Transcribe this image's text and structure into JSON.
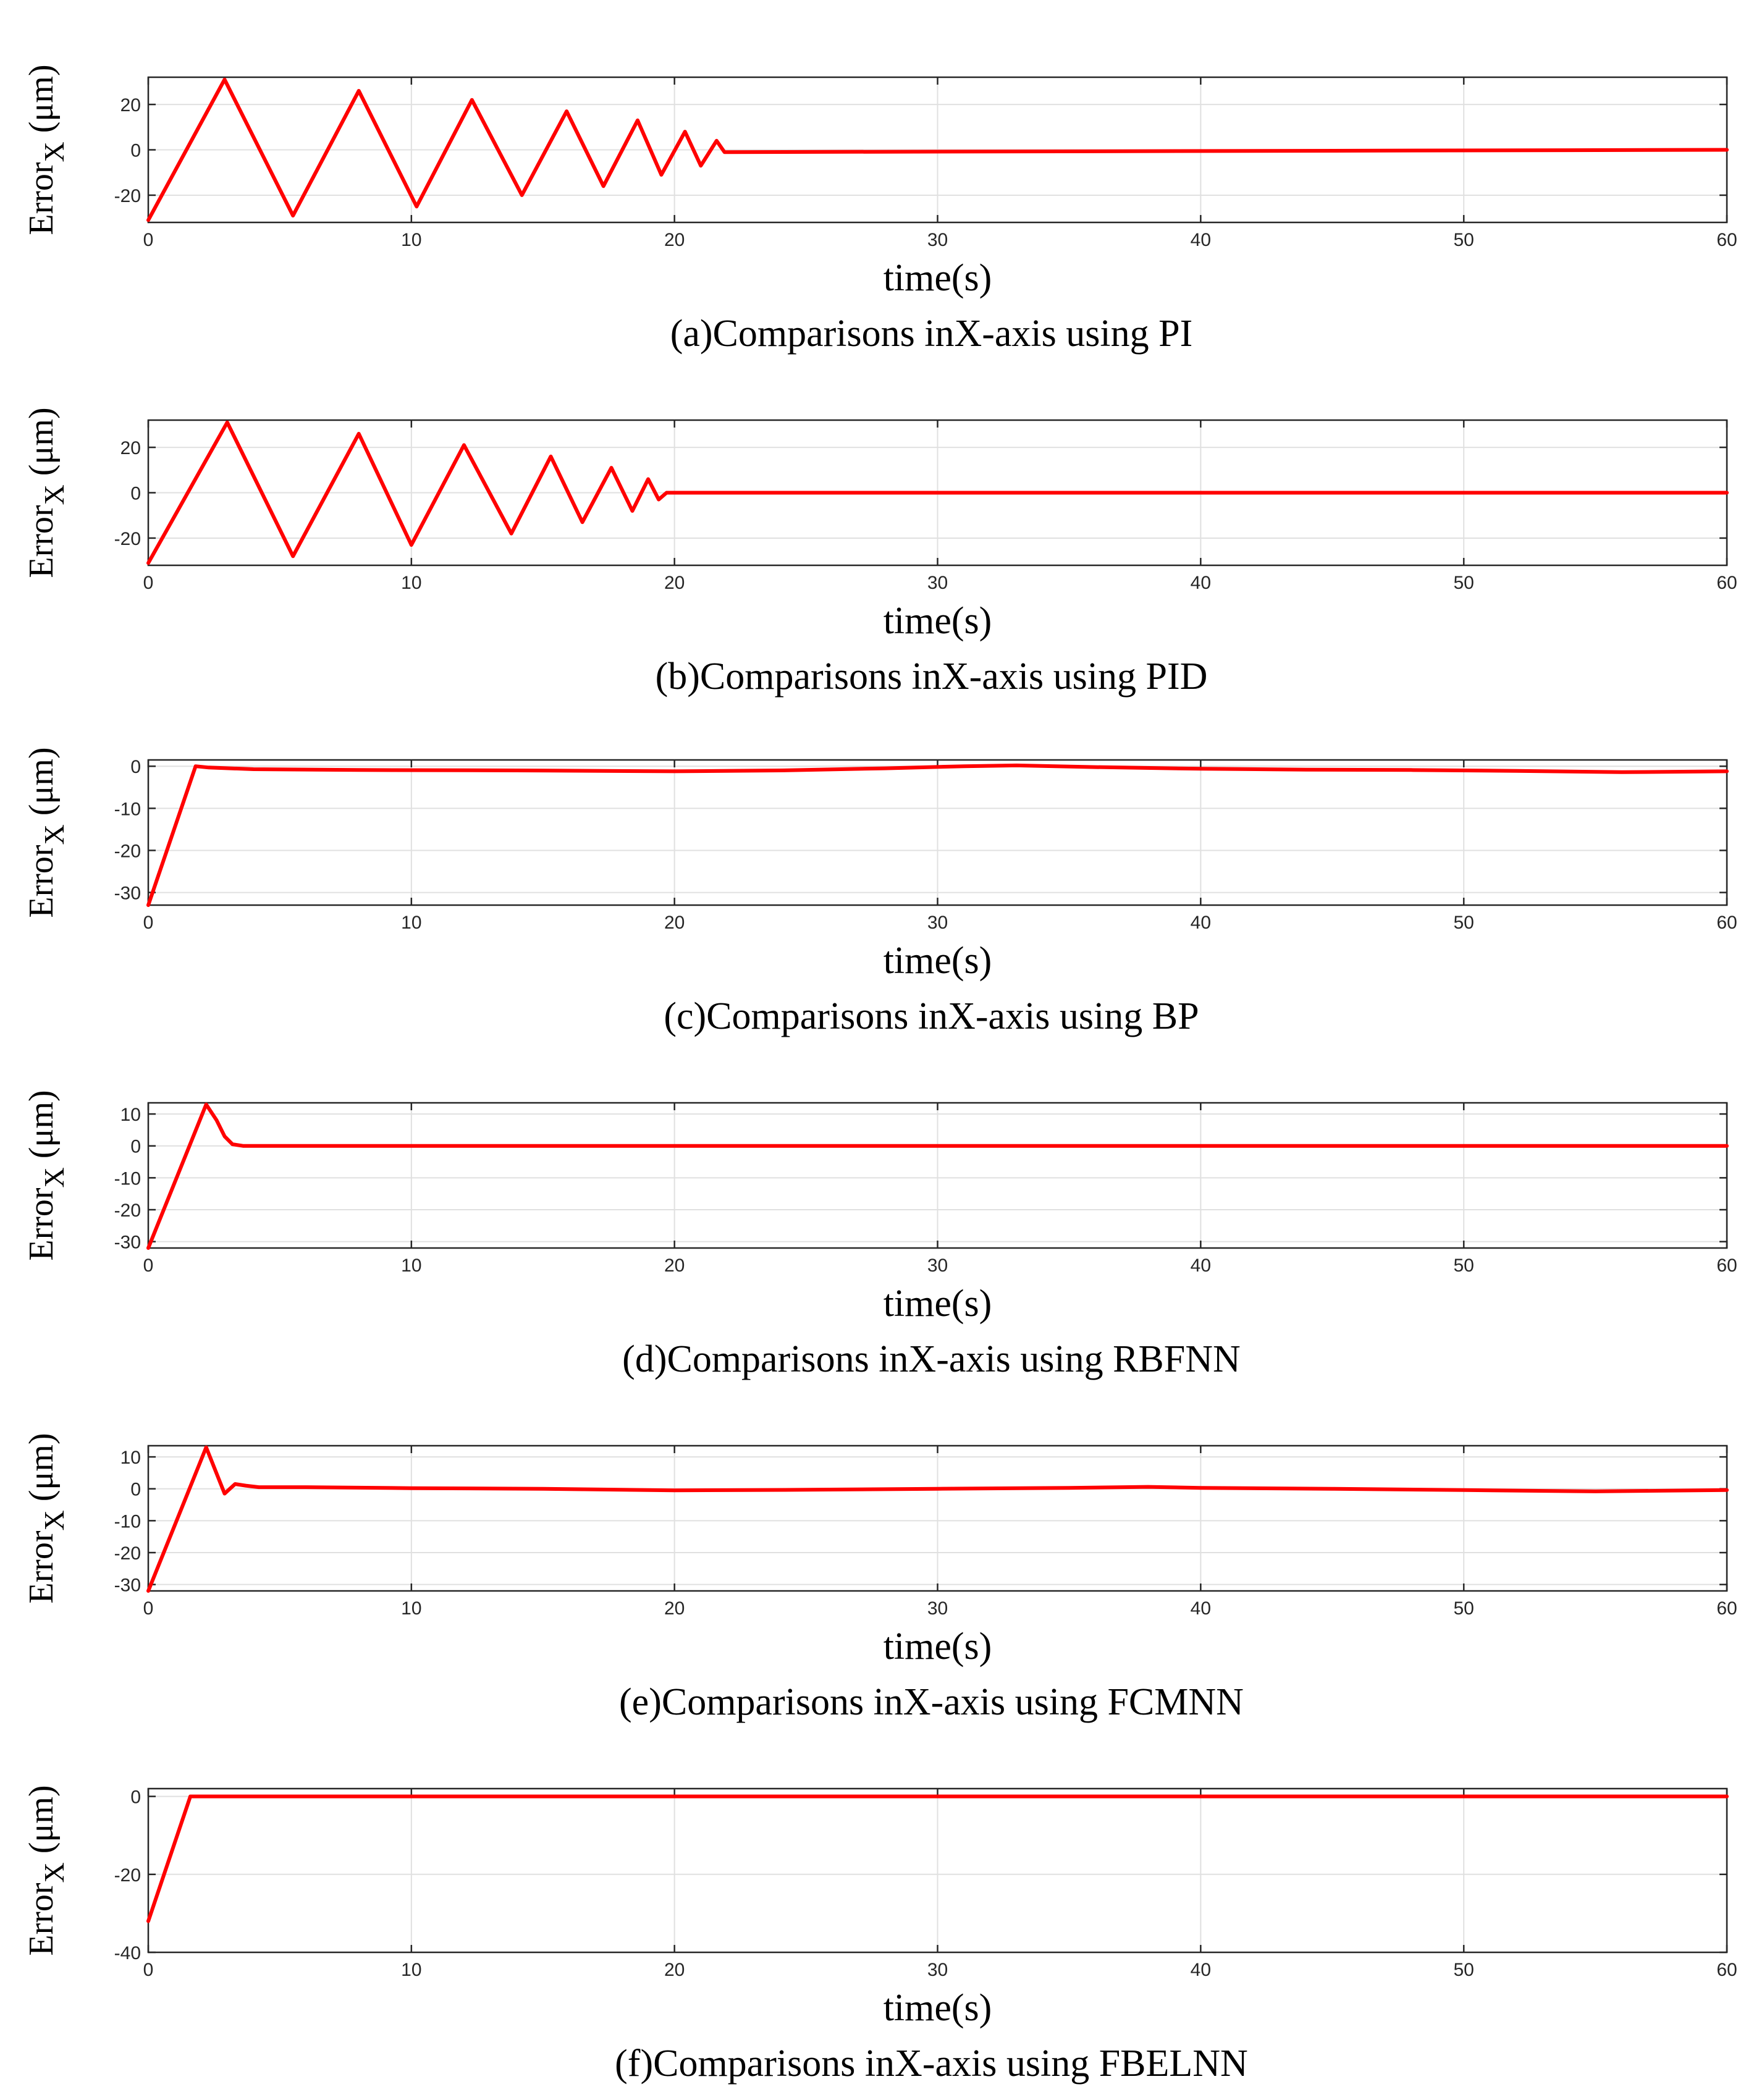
{
  "figure": {
    "colors": {
      "series": "#ff0000",
      "grid": "#e0e0e0",
      "axes": "#262626"
    }
  },
  "chart_data": [
    {
      "type": "line",
      "caption": "(a)Comparisons inX-axis using PI",
      "xlabel": "time(s)",
      "ylabel": "Error",
      "ylabel_sub": "X",
      "ylabel_unit": "(μm)",
      "xlim": [
        0,
        60
      ],
      "ylim": [
        -32,
        32
      ],
      "xticks": [
        0,
        10,
        20,
        30,
        40,
        50,
        60
      ],
      "yticks": [
        -20,
        0,
        20
      ],
      "grid": true,
      "series": [
        {
          "name": "Error_X",
          "color": "#ff0000",
          "x": [
            0,
            2.9,
            5.5,
            8.0,
            10.2,
            12.3,
            14.2,
            15.9,
            17.3,
            18.6,
            19.5,
            20.4,
            21.0,
            21.6,
            21.9,
            60
          ],
          "y": [
            -31,
            31,
            -29,
            26,
            -25,
            22,
            -20,
            17,
            -16,
            13,
            -11,
            8,
            -7,
            4,
            -1,
            0
          ]
        }
      ]
    },
    {
      "type": "line",
      "caption": "(b)Comparisons inX-axis using PID",
      "xlabel": "time(s)",
      "ylabel": "Error",
      "ylabel_sub": "X",
      "ylabel_unit": "(μm)",
      "xlim": [
        0,
        60
      ],
      "ylim": [
        -32,
        32
      ],
      "xticks": [
        0,
        10,
        20,
        30,
        40,
        50,
        60
      ],
      "yticks": [
        -20,
        0,
        20
      ],
      "grid": true,
      "series": [
        {
          "name": "Error_X",
          "color": "#ff0000",
          "x": [
            0,
            3.0,
            5.5,
            8.0,
            10.0,
            12.0,
            13.8,
            15.3,
            16.5,
            17.6,
            18.4,
            19.0,
            19.4,
            19.7,
            60
          ],
          "y": [
            -31,
            31,
            -28,
            26,
            -23,
            21,
            -18,
            16,
            -13,
            11,
            -8,
            6,
            -3,
            0,
            0
          ]
        }
      ]
    },
    {
      "type": "line",
      "caption": "(c)Comparisons inX-axis using BP",
      "xlabel": "time(s)",
      "ylabel": "Error",
      "ylabel_sub": "X",
      "ylabel_unit": "(μm)",
      "xlim": [
        0,
        60
      ],
      "ylim": [
        -33,
        1.5
      ],
      "xticks": [
        0,
        10,
        20,
        30,
        40,
        50,
        60
      ],
      "yticks": [
        -30,
        -20,
        -10,
        0
      ],
      "grid": true,
      "series": [
        {
          "name": "Error_X",
          "color": "#ff0000",
          "x": [
            0,
            1.8,
            2.3,
            4,
            8,
            14,
            20,
            24,
            28,
            31,
            33,
            36,
            40,
            44,
            48,
            52,
            56,
            60
          ],
          "y": [
            -33,
            0,
            -0.3,
            -0.7,
            -0.9,
            -1.0,
            -1.2,
            -1.0,
            -0.5,
            0.0,
            0.2,
            -0.2,
            -0.6,
            -0.8,
            -0.9,
            -1.1,
            -1.4,
            -1.2
          ]
        }
      ]
    },
    {
      "type": "line",
      "caption": "(d)Comparisons inX-axis using RBFNN",
      "xlabel": "time(s)",
      "ylabel": "Error",
      "ylabel_sub": "X",
      "ylabel_unit": "(μm)",
      "xlim": [
        0,
        60
      ],
      "ylim": [
        -32,
        13.5
      ],
      "xticks": [
        0,
        10,
        20,
        30,
        40,
        50,
        60
      ],
      "yticks": [
        -30,
        -20,
        -10,
        0,
        10
      ],
      "grid": true,
      "series": [
        {
          "name": "Error_X",
          "color": "#ff0000",
          "x": [
            0,
            2.2,
            2.6,
            2.9,
            3.2,
            3.6,
            10,
            20,
            30,
            40,
            50,
            60
          ],
          "y": [
            -32,
            13,
            8,
            3,
            0.5,
            0,
            0,
            0,
            0,
            0,
            0,
            0
          ]
        }
      ]
    },
    {
      "type": "line",
      "caption": "(e)Comparisons inX-axis using FCMNN",
      "xlabel": "time(s)",
      "ylabel": "Error",
      "ylabel_sub": "X",
      "ylabel_unit": "(μm)",
      "xlim": [
        0,
        60
      ],
      "ylim": [
        -32,
        13.5
      ],
      "xticks": [
        0,
        10,
        20,
        30,
        40,
        50,
        60
      ],
      "yticks": [
        -30,
        -20,
        -10,
        0,
        10
      ],
      "grid": true,
      "series": [
        {
          "name": "Error_X",
          "color": "#ff0000",
          "x": [
            0,
            2.2,
            2.9,
            3.3,
            3.7,
            4.2,
            6,
            10,
            15,
            20,
            25,
            30,
            35,
            38,
            40,
            45,
            50,
            55,
            60
          ],
          "y": [
            -32,
            13,
            -1.5,
            1.5,
            1.0,
            0.5,
            0.5,
            0.2,
            0,
            -0.5,
            -0.3,
            0,
            0.3,
            0.6,
            0.3,
            0,
            -0.4,
            -0.8,
            -0.4
          ]
        }
      ]
    },
    {
      "type": "line",
      "caption": "(f)Comparisons inX-axis using FBELNN",
      "xlabel": "time(s)",
      "ylabel": "Error",
      "ylabel_sub": "X",
      "ylabel_unit": "(μm)",
      "xlim": [
        0,
        60
      ],
      "ylim": [
        -40,
        2
      ],
      "xticks": [
        0,
        10,
        20,
        30,
        40,
        50,
        60
      ],
      "yticks": [
        -40,
        -20,
        0
      ],
      "grid": true,
      "series": [
        {
          "name": "Error_X",
          "color": "#ff0000",
          "x": [
            0,
            1.6,
            10,
            20,
            30,
            40,
            50,
            60
          ],
          "y": [
            -32,
            0,
            0,
            0,
            0,
            0,
            0,
            0
          ]
        }
      ]
    }
  ]
}
